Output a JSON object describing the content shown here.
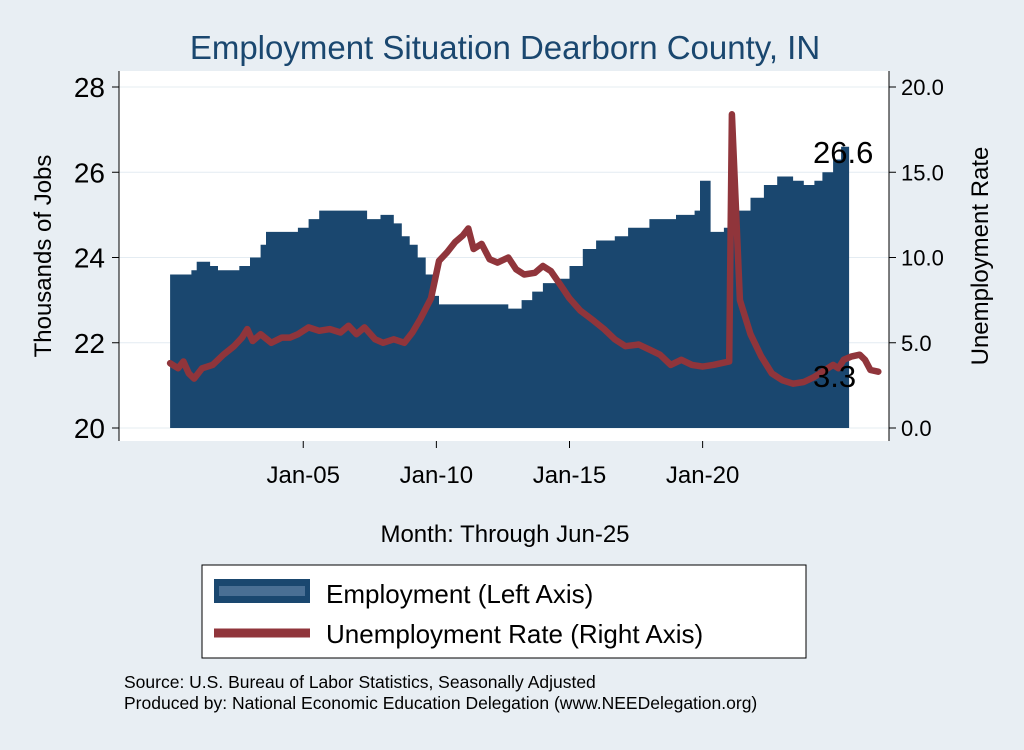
{
  "chart_data": {
    "type": "area+line",
    "title": "Employment Situation Dearborn  County, IN",
    "xlabel": "Month: Through Jun-25",
    "ylabel_left": "Thousands of Jobs",
    "ylabel_right": "Unemployment Rate",
    "x_start": 2000.0,
    "x_end": 2025.5,
    "x_ticks": [
      {
        "value": 2005.0,
        "label": "Jan-05"
      },
      {
        "value": 2010.0,
        "label": "Jan-10"
      },
      {
        "value": 2015.0,
        "label": "Jan-15"
      },
      {
        "value": 2020.0,
        "label": "Jan-20"
      }
    ],
    "ylim_left": [
      20,
      28
    ],
    "yticks_left": [
      "20",
      "22",
      "24",
      "26",
      "28"
    ],
    "ylim_right": [
      0,
      20
    ],
    "yticks_right": [
      "0.0",
      "5.0",
      "10.0",
      "15.0",
      "20.0"
    ],
    "grid": true,
    "legend_position": "bottom",
    "colors": {
      "employment": "#1a476f",
      "unemployment": "#90353b",
      "background": "#e8eef3",
      "plot_background": "#ffffff",
      "grid": "#e4ecf2",
      "title": "#1a476f"
    },
    "series": [
      {
        "name": "Employment (Left Axis)",
        "axis": "left",
        "style": "area",
        "points": [
          [
            2000.0,
            23.6
          ],
          [
            2000.8,
            23.7
          ],
          [
            2001.0,
            23.9
          ],
          [
            2001.5,
            23.8
          ],
          [
            2001.8,
            23.7
          ],
          [
            2002.2,
            23.7
          ],
          [
            2002.6,
            23.8
          ],
          [
            2003.0,
            24.0
          ],
          [
            2003.4,
            24.3
          ],
          [
            2003.6,
            24.6
          ],
          [
            2004.2,
            24.6
          ],
          [
            2004.8,
            24.7
          ],
          [
            2005.2,
            24.9
          ],
          [
            2005.6,
            25.1
          ],
          [
            2006.3,
            25.1
          ],
          [
            2006.8,
            25.1
          ],
          [
            2007.4,
            24.9
          ],
          [
            2007.9,
            25.0
          ],
          [
            2008.4,
            24.8
          ],
          [
            2008.7,
            24.5
          ],
          [
            2009.0,
            24.3
          ],
          [
            2009.3,
            24.0
          ],
          [
            2009.6,
            23.6
          ],
          [
            2009.9,
            23.1
          ],
          [
            2010.1,
            22.9
          ],
          [
            2011.0,
            22.9
          ],
          [
            2011.8,
            22.9
          ],
          [
            2012.2,
            22.9
          ],
          [
            2012.7,
            22.8
          ],
          [
            2013.2,
            23.0
          ],
          [
            2013.6,
            23.2
          ],
          [
            2014.0,
            23.4
          ],
          [
            2014.5,
            23.5
          ],
          [
            2015.0,
            23.8
          ],
          [
            2015.5,
            24.2
          ],
          [
            2016.0,
            24.4
          ],
          [
            2016.7,
            24.5
          ],
          [
            2017.2,
            24.7
          ],
          [
            2018.0,
            24.9
          ],
          [
            2019.0,
            25.0
          ],
          [
            2019.7,
            25.1
          ],
          [
            2019.9,
            25.8
          ],
          [
            2020.2,
            25.8
          ],
          [
            2020.3,
            24.6
          ],
          [
            2020.8,
            24.7
          ],
          [
            2021.2,
            25.1
          ],
          [
            2021.8,
            25.4
          ],
          [
            2022.3,
            25.7
          ],
          [
            2022.8,
            25.9
          ],
          [
            2023.4,
            25.8
          ],
          [
            2023.8,
            25.7
          ],
          [
            2024.2,
            25.8
          ],
          [
            2024.5,
            26.0
          ],
          [
            2024.9,
            26.3
          ],
          [
            2025.2,
            26.6
          ],
          [
            2025.5,
            26.6
          ]
        ]
      },
      {
        "name": "Unemployment Rate (Right Axis)",
        "axis": "right",
        "style": "line",
        "points": [
          [
            2000.0,
            3.8
          ],
          [
            2000.3,
            3.5
          ],
          [
            2000.5,
            3.9
          ],
          [
            2000.7,
            3.2
          ],
          [
            2000.9,
            2.9
          ],
          [
            2001.2,
            3.5
          ],
          [
            2001.6,
            3.7
          ],
          [
            2002.0,
            4.3
          ],
          [
            2002.4,
            4.8
          ],
          [
            2002.7,
            5.3
          ],
          [
            2002.9,
            5.8
          ],
          [
            2003.1,
            5.1
          ],
          [
            2003.4,
            5.5
          ],
          [
            2003.8,
            5.0
          ],
          [
            2004.2,
            5.3
          ],
          [
            2004.5,
            5.3
          ],
          [
            2004.8,
            5.5
          ],
          [
            2005.2,
            5.9
          ],
          [
            2005.6,
            5.7
          ],
          [
            2006.0,
            5.8
          ],
          [
            2006.4,
            5.6
          ],
          [
            2006.7,
            6.0
          ],
          [
            2007.0,
            5.5
          ],
          [
            2007.3,
            5.9
          ],
          [
            2007.7,
            5.2
          ],
          [
            2008.0,
            5.0
          ],
          [
            2008.4,
            5.2
          ],
          [
            2008.8,
            5.0
          ],
          [
            2009.1,
            5.6
          ],
          [
            2009.4,
            6.4
          ],
          [
            2009.8,
            7.6
          ],
          [
            2010.1,
            9.8
          ],
          [
            2010.4,
            10.3
          ],
          [
            2010.7,
            10.9
          ],
          [
            2011.0,
            11.3
          ],
          [
            2011.2,
            11.7
          ],
          [
            2011.4,
            10.5
          ],
          [
            2011.7,
            10.8
          ],
          [
            2012.0,
            9.9
          ],
          [
            2012.3,
            9.7
          ],
          [
            2012.7,
            10.0
          ],
          [
            2013.0,
            9.3
          ],
          [
            2013.3,
            9.0
          ],
          [
            2013.7,
            9.1
          ],
          [
            2014.0,
            9.5
          ],
          [
            2014.3,
            9.2
          ],
          [
            2014.7,
            8.3
          ],
          [
            2015.0,
            7.6
          ],
          [
            2015.4,
            6.9
          ],
          [
            2015.9,
            6.3
          ],
          [
            2016.3,
            5.8
          ],
          [
            2016.7,
            5.2
          ],
          [
            2017.1,
            4.8
          ],
          [
            2017.6,
            4.9
          ],
          [
            2018.0,
            4.6
          ],
          [
            2018.4,
            4.3
          ],
          [
            2018.8,
            3.7
          ],
          [
            2019.2,
            4.0
          ],
          [
            2019.6,
            3.7
          ],
          [
            2020.0,
            3.6
          ],
          [
            2020.4,
            3.7
          ],
          [
            2020.7,
            3.8
          ],
          [
            2021.0,
            3.9
          ],
          [
            2021.1,
            18.4
          ],
          [
            2021.4,
            7.5
          ],
          [
            2021.8,
            5.5
          ],
          [
            2022.2,
            4.2
          ],
          [
            2022.6,
            3.2
          ],
          [
            2023.0,
            2.8
          ],
          [
            2023.4,
            2.6
          ],
          [
            2023.8,
            2.7
          ],
          [
            2024.2,
            3.0
          ],
          [
            2024.6,
            3.4
          ],
          [
            2024.9,
            3.7
          ],
          [
            2025.1,
            3.5
          ],
          [
            2025.3,
            4.0
          ],
          [
            2025.6,
            4.2
          ],
          [
            2025.9,
            4.3
          ],
          [
            2026.1,
            4.0
          ],
          [
            2026.3,
            3.4
          ],
          [
            2026.6,
            3.3
          ]
        ]
      }
    ],
    "end_labels": {
      "employment": "26.6",
      "unemployment": "3.3"
    }
  },
  "source_lines": [
    "Source: U.S. Bureau of Labor Statistics, Seasonally Adjusted",
    "Produced by: National Economic Education Delegation (www.NEEDelegation.org)"
  ]
}
